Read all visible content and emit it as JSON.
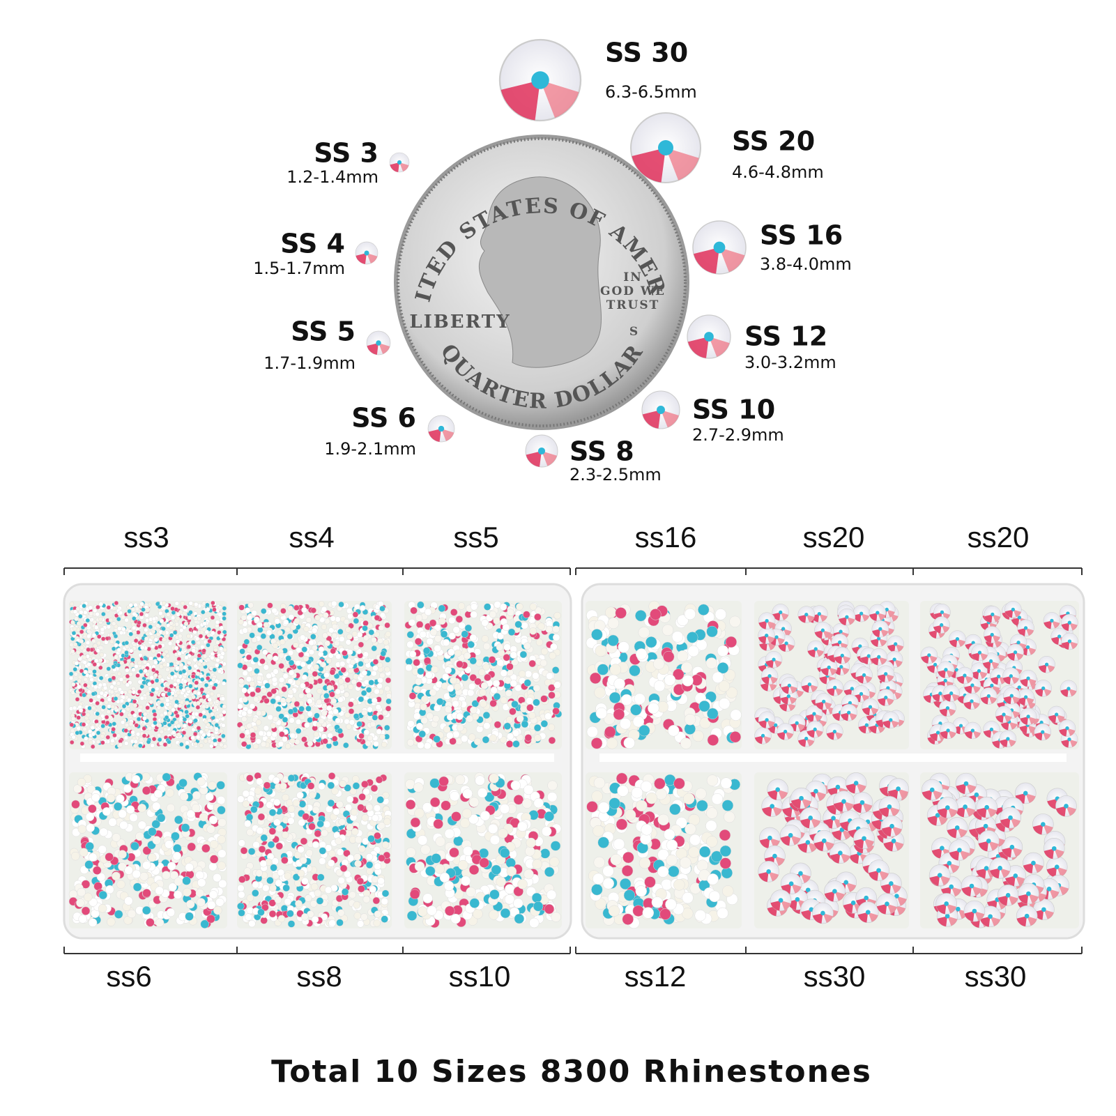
{
  "sizes": [
    {
      "name": "SS 30",
      "range": "6.3-6.5mm"
    },
    {
      "name": "SS 20",
      "range": "4.6-4.8mm"
    },
    {
      "name": "SS 16",
      "range": "3.8-4.0mm"
    },
    {
      "name": "SS 12",
      "range": "3.0-3.2mm"
    },
    {
      "name": "SS 10",
      "range": "2.7-2.9mm"
    },
    {
      "name": "SS 8",
      "range": "2.3-2.5mm"
    },
    {
      "name": "SS 6",
      "range": "1.9-2.1mm"
    },
    {
      "name": "SS 5",
      "range": "1.7-1.9mm"
    },
    {
      "name": "SS 4",
      "range": "1.5-1.7mm"
    },
    {
      "name": "SS 3",
      "range": "1.2-1.4mm"
    }
  ],
  "coin": {
    "top": "UNITED STATES OF AMERICA",
    "left": "LIBERTY",
    "motto": [
      "IN",
      "GOD WE",
      "TRUST"
    ],
    "mint": "S",
    "bottom": "QUARTER DOLLAR"
  },
  "box": {
    "top_labels": [
      "ss3",
      "ss4",
      "ss5",
      "ss16",
      "ss20",
      "ss20"
    ],
    "bottom_labels": [
      "ss6",
      "ss8",
      "ss10",
      "ss12",
      "ss30",
      "ss30"
    ]
  },
  "footer": "Total 10 Sizes 8300 Rhinestones"
}
